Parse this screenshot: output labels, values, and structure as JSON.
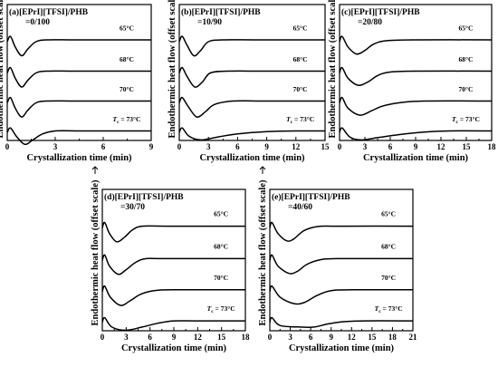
{
  "chart_data": [
    {
      "id": "a",
      "type": "line",
      "title_line1": "(a)[EPrI][TFSI]/PHB",
      "title_line2": "=0/100",
      "xlabel": "Crystallization time (min)",
      "ylabel": "Endothermic heat flow (offset scale)",
      "xlim": [
        0,
        9
      ],
      "xticks": [
        "0",
        "3",
        "6",
        "9"
      ],
      "grid": false,
      "series": [
        {
          "name": "65°C",
          "x": [
            0,
            0.2,
            0.5,
            0.9,
            1.3,
            1.8,
            2.5,
            4,
            6,
            9
          ],
          "y": [
            -0.1,
            0.2,
            -0.4,
            -0.9,
            -0.5,
            -0.1,
            0.0,
            0.0,
            0.0,
            0.0
          ]
        },
        {
          "name": "68°C",
          "x": [
            0,
            0.2,
            0.5,
            0.9,
            1.3,
            1.8,
            2.5,
            4,
            6,
            9
          ],
          "y": [
            -0.1,
            0.2,
            -0.4,
            -0.9,
            -0.5,
            -0.1,
            0.0,
            0.0,
            0.0,
            0.0
          ]
        },
        {
          "name": "70°C",
          "x": [
            0,
            0.2,
            0.5,
            0.9,
            1.3,
            1.8,
            2.5,
            4,
            6,
            9
          ],
          "y": [
            -0.1,
            0.2,
            -0.4,
            -0.9,
            -0.5,
            -0.1,
            0.0,
            0.0,
            0.0,
            0.0
          ]
        },
        {
          "name": "T_c = 73°C",
          "x": [
            0,
            0.2,
            0.6,
            1.1,
            1.6,
            2.2,
            3,
            4.5,
            6,
            9
          ],
          "y": [
            -0.1,
            0.2,
            -0.4,
            -0.9,
            -0.6,
            -0.2,
            0.0,
            0.0,
            0.0,
            0.0
          ]
        }
      ]
    },
    {
      "id": "b",
      "type": "line",
      "title_line1": "(b)[EPrI][TFSI]/PHB",
      "title_line2": "=10/90",
      "xlabel": "Crystallization time (min)",
      "ylabel": "Endothermic heat flow (offset scale)",
      "xlim": [
        0,
        15
      ],
      "xticks": [
        "0",
        "3",
        "6",
        "9",
        "12",
        "15"
      ],
      "grid": false,
      "series": [
        {
          "name": "65°C",
          "x": [
            0,
            0.3,
            0.8,
            1.5,
            2.2,
            3,
            4.5,
            8,
            15
          ],
          "y": [
            -0.1,
            0.2,
            -0.3,
            -0.9,
            -0.6,
            -0.1,
            0.0,
            0.0,
            0.0
          ]
        },
        {
          "name": "68°C",
          "x": [
            0,
            0.3,
            0.8,
            1.6,
            2.4,
            3.2,
            5,
            8,
            15
          ],
          "y": [
            -0.1,
            0.2,
            -0.3,
            -0.9,
            -0.6,
            -0.1,
            0.0,
            0.0,
            0.0
          ]
        },
        {
          "name": "70°C",
          "x": [
            0,
            0.3,
            0.9,
            1.8,
            2.7,
            3.6,
            5.5,
            9,
            15
          ],
          "y": [
            -0.1,
            0.2,
            -0.3,
            -0.9,
            -0.6,
            -0.2,
            0.0,
            0.0,
            0.0
          ]
        },
        {
          "name": "T_c = 73°C",
          "x": [
            0,
            0.3,
            1.0,
            2.2,
            4,
            6,
            9,
            12,
            15
          ],
          "y": [
            -0.1,
            0.2,
            -0.35,
            -0.6,
            -0.4,
            -0.2,
            -0.05,
            0.0,
            0.0
          ]
        }
      ]
    },
    {
      "id": "c",
      "type": "line",
      "title_line1": "(c)[EPrI][TFSI]/PHB",
      "title_line2": "=20/80",
      "xlabel": "Crystallization time (min)",
      "ylabel": "Endothermic heat flow (offset scale)",
      "xlim": [
        0,
        18
      ],
      "xticks": [
        "0",
        "3",
        "6",
        "9",
        "12",
        "15",
        "18"
      ],
      "grid": false,
      "series": [
        {
          "name": "65°C",
          "x": [
            0,
            0.3,
            1.0,
            2.0,
            3,
            4,
            5.5,
            9,
            18
          ],
          "y": [
            -0.1,
            0.2,
            -0.4,
            -0.8,
            -0.6,
            -0.25,
            -0.05,
            0.0,
            0.0
          ]
        },
        {
          "name": "68°C",
          "x": [
            0,
            0.3,
            1.0,
            2.2,
            3.4,
            4.5,
            6,
            9,
            18
          ],
          "y": [
            -0.1,
            0.2,
            -0.4,
            -0.8,
            -0.6,
            -0.25,
            -0.05,
            0.0,
            0.0
          ]
        },
        {
          "name": "70°C",
          "x": [
            0,
            0.3,
            1.0,
            2.4,
            3.8,
            5,
            7,
            10,
            18
          ],
          "y": [
            -0.1,
            0.2,
            -0.4,
            -0.8,
            -0.55,
            -0.3,
            -0.1,
            0.0,
            0.0
          ]
        },
        {
          "name": "T_c = 73°C",
          "x": [
            0,
            0.3,
            1.2,
            2.5,
            4.5,
            7,
            10,
            13,
            18
          ],
          "y": [
            -0.1,
            0.2,
            -0.4,
            -0.6,
            -0.45,
            -0.25,
            -0.08,
            0.0,
            0.0
          ]
        }
      ]
    },
    {
      "id": "d",
      "type": "line",
      "title_line1": "(d)[EPrI][TFSI]/PHB",
      "title_line2": "=30/70",
      "xlabel": "Crystallization time (min)",
      "ylabel": "Endothermic heat flow (offset scale)",
      "xlim": [
        0,
        18
      ],
      "xticks": [
        "0",
        "3",
        "6",
        "9",
        "12",
        "15",
        "18"
      ],
      "grid": false,
      "series": [
        {
          "name": "65°C",
          "x": [
            0,
            0.3,
            0.9,
            1.8,
            2.8,
            3.8,
            5,
            8,
            18
          ],
          "y": [
            -0.1,
            0.2,
            -0.4,
            -0.85,
            -0.6,
            -0.2,
            0.0,
            0.0,
            0.0
          ]
        },
        {
          "name": "68°C",
          "x": [
            0,
            0.3,
            0.9,
            2.0,
            3.0,
            4.2,
            5.5,
            8,
            18
          ],
          "y": [
            -0.1,
            0.2,
            -0.4,
            -0.85,
            -0.6,
            -0.2,
            0.0,
            0.0,
            0.0
          ]
        },
        {
          "name": "70°C",
          "x": [
            0,
            0.3,
            1.0,
            2.3,
            3.5,
            4.8,
            6.5,
            9,
            18
          ],
          "y": [
            -0.1,
            0.2,
            -0.4,
            -0.85,
            -0.6,
            -0.25,
            -0.05,
            0.0,
            0.0
          ]
        },
        {
          "name": "T_c = 73°C",
          "x": [
            0,
            0.3,
            1.2,
            3.0,
            5,
            7,
            9,
            12,
            18
          ],
          "y": [
            -0.1,
            0.2,
            -0.4,
            -0.6,
            -0.4,
            -0.15,
            0.0,
            0.0,
            0.0
          ]
        }
      ]
    },
    {
      "id": "e",
      "type": "line",
      "title_line1": "(e)[EPrI][TFSI]/PHB",
      "title_line2": "=40/60",
      "xlabel": "Crystallization time (min)",
      "ylabel": "Endothermic heat flow (offset scale)",
      "xlim": [
        0,
        21
      ],
      "xticks": [
        "0",
        "3",
        "6",
        "9",
        "12",
        "15",
        "18",
        "21"
      ],
      "grid": false,
      "series": [
        {
          "name": "65°C",
          "x": [
            0,
            0.3,
            1.2,
            2.5,
            3.5,
            5,
            7,
            10,
            21
          ],
          "y": [
            -0.1,
            0.2,
            -0.4,
            -0.8,
            -0.7,
            -0.25,
            -0.02,
            0.0,
            0.0
          ]
        },
        {
          "name": "68°C",
          "x": [
            0,
            0.3,
            1.2,
            2.8,
            4.0,
            5.5,
            7.5,
            10,
            21
          ],
          "y": [
            -0.1,
            0.2,
            -0.4,
            -0.8,
            -0.7,
            -0.3,
            -0.05,
            0.0,
            0.0
          ]
        },
        {
          "name": "70°C",
          "x": [
            0,
            0.3,
            1.5,
            3.5,
            5.0,
            7,
            9,
            12,
            21
          ],
          "y": [
            -0.1,
            0.2,
            -0.4,
            -0.75,
            -0.7,
            -0.3,
            -0.05,
            0.0,
            0.0
          ]
        },
        {
          "name": "T_c = 73°C",
          "x": [
            0,
            0.3,
            1.5,
            4.5,
            6.5,
            8.5,
            11,
            14,
            21
          ],
          "y": [
            -0.1,
            0.2,
            -0.3,
            -0.4,
            -0.4,
            -0.2,
            -0.05,
            0.0,
            0.0
          ]
        }
      ]
    }
  ]
}
